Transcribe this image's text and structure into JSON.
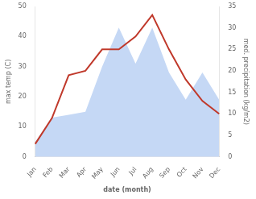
{
  "chart_data": {
    "type": "line",
    "categories": [
      "Jan",
      "Feb",
      "Mar",
      "Apr",
      "May",
      "Jun",
      "Jul",
      "Aug",
      "Sep",
      "Oct",
      "Nov",
      "Dec"
    ],
    "series": [
      {
        "type": "area",
        "color": "#c5d8f5",
        "values": [
          5,
          13,
          14,
          15,
          30,
          43,
          31,
          43,
          28,
          19,
          28,
          19
        ]
      },
      {
        "type": "line",
        "color": "#c0392b",
        "values": [
          3,
          9,
          19,
          20,
          25,
          25,
          28,
          33,
          25,
          18,
          13,
          10
        ],
        "axis": "y2"
      }
    ],
    "xlabel": "date (month)",
    "ylabel": "max temp (C)",
    "y2label": "med. precipitation (kg/m2)",
    "ylim": [
      0,
      50
    ],
    "yticks": [
      0,
      10,
      20,
      30,
      40,
      50
    ],
    "y2lim": [
      0,
      35
    ],
    "y2ticks": [
      0,
      5,
      10,
      15,
      20,
      25,
      30,
      35
    ],
    "grid": false
  }
}
